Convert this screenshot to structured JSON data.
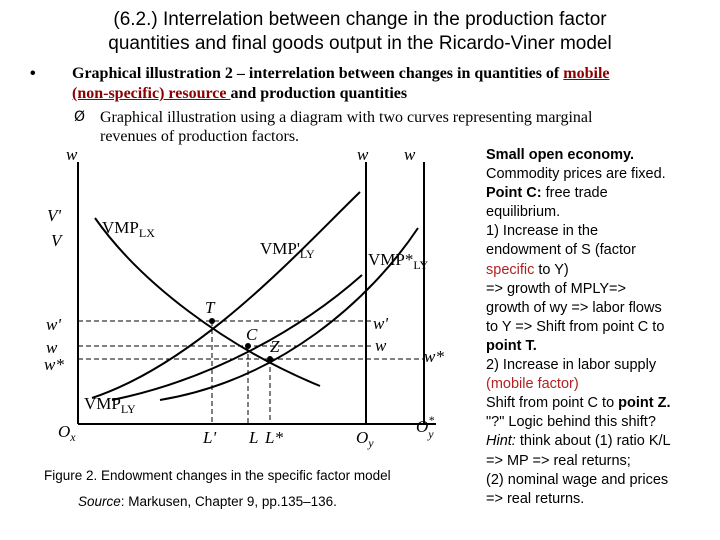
{
  "title": {
    "line1": "(6.2.) Interrelation between change in the production factor",
    "line2": "quantities and final goods output in the Ricardo-Viner model"
  },
  "bullet": {
    "symbol": "•",
    "text_a": "Graphical illustration 2 – interrelation between changes in quantities of ",
    "link_a": "mobile",
    "link_b": "(non-specific) resource ",
    "text_b": "and production quantities"
  },
  "subbullet": {
    "symbol": "Ø",
    "line1": "Graphical illustration using a diagram with two curves representing marginal",
    "line2": "revenues of production factors."
  },
  "diagram": {
    "axis_w_left": "w",
    "axis_w_right1": "w",
    "axis_w_right2": "w",
    "V_prime": "V'",
    "V": "V",
    "w_prime_left": "w'",
    "w_left": "w",
    "w_star_left": "w*",
    "w_prime_right": "w'",
    "w_right": "w",
    "w_star_right": "w*",
    "vmp_lx_main": "VMP",
    "vmp_lx_sub": "LX",
    "vmp_ly_prime_main": "VMP'",
    "vmp_ly_prime_sub": "LY",
    "vmp_ly_star_main": "VMP*",
    "vmp_ly_star_sub": "LY",
    "vmp_ly_main": "VMP",
    "vmp_ly_sub": "LY",
    "point_T": "T",
    "point_C": "C",
    "point_Z": "Z",
    "origin_x_main": "O",
    "origin_x_sub": "x",
    "L_prime": "L'",
    "L": "L",
    "L_star": "L*",
    "origin_y_main": "O",
    "origin_y_sub": "y",
    "origin_y_star_main": "O",
    "origin_y_star_sup": "*",
    "origin_y_star_sub": "y"
  },
  "caption": "Figure 2. Endowment changes in the specific factor model",
  "source": {
    "label": "Source",
    "text": ": Markusen, Chapter 9, pp.135–136."
  },
  "notes": {
    "l1": "Small open economy.",
    "l2": "Commodity prices are fixed.",
    "l3": "Point C:",
    "l3b": " free trade",
    "l4": "equilibrium.",
    "l5": "1) Increase in the",
    "l6": "endowment of S (factor",
    "l7a": "specific",
    "l7b": " to Y)",
    "l8": "=> growth of MPLY=>",
    "l9": "growth of wy => labor flows",
    "l10": "to Y => Shift from point C to",
    "l11": "point T.",
    "l12": "2) Increase in labor supply",
    "l13": "(mobile factor)",
    "l14a": "Shift from point C to ",
    "l14b": "point Z.",
    "l15": "\"?\" Logic behind this shift?",
    "l16a": "Hint:",
    "l16b": " think about (1) ratio K/L",
    "l17": "=> MP => real returns;",
    "l18": "(2) nominal wage and prices",
    "l19": "=> real returns."
  }
}
